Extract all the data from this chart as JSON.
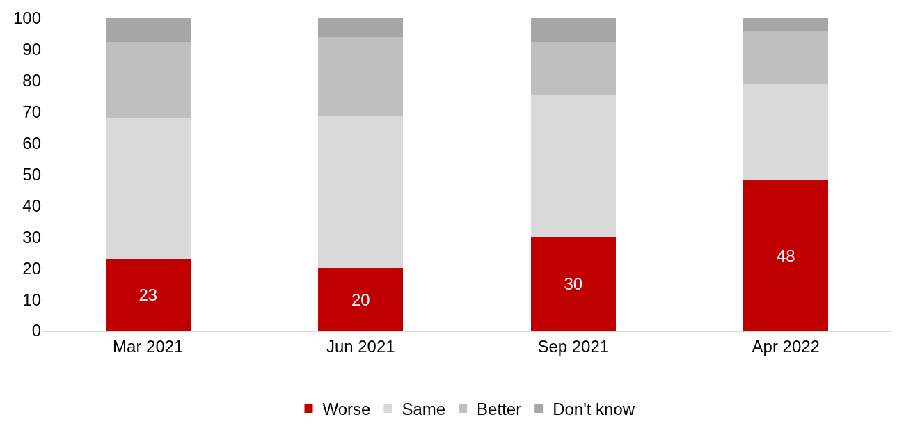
{
  "chart_data": {
    "type": "bar",
    "stacked": true,
    "categories": [
      "Mar 2021",
      "Jun 2021",
      "Sep 2021",
      "Apr 2022"
    ],
    "series": [
      {
        "name": "Worse",
        "color": "#c00000",
        "values": [
          23,
          20,
          30,
          48
        ],
        "value_labels": [
          "23",
          "20",
          "30",
          "48"
        ]
      },
      {
        "name": "Same",
        "color": "#d9d9d9",
        "values": [
          45,
          48.5,
          45.5,
          31
        ]
      },
      {
        "name": "Better",
        "color": "#bfbfbf",
        "values": [
          24.5,
          25.5,
          17,
          17
        ]
      },
      {
        "name": "Don't know",
        "color": "#a6a6a6",
        "values": [
          7.5,
          6,
          7.5,
          4
        ]
      }
    ],
    "ylim": [
      0,
      100
    ],
    "yticks": [
      0,
      10,
      20,
      30,
      40,
      50,
      60,
      70,
      80,
      90,
      100
    ],
    "grid": false,
    "legend": "bottom"
  }
}
